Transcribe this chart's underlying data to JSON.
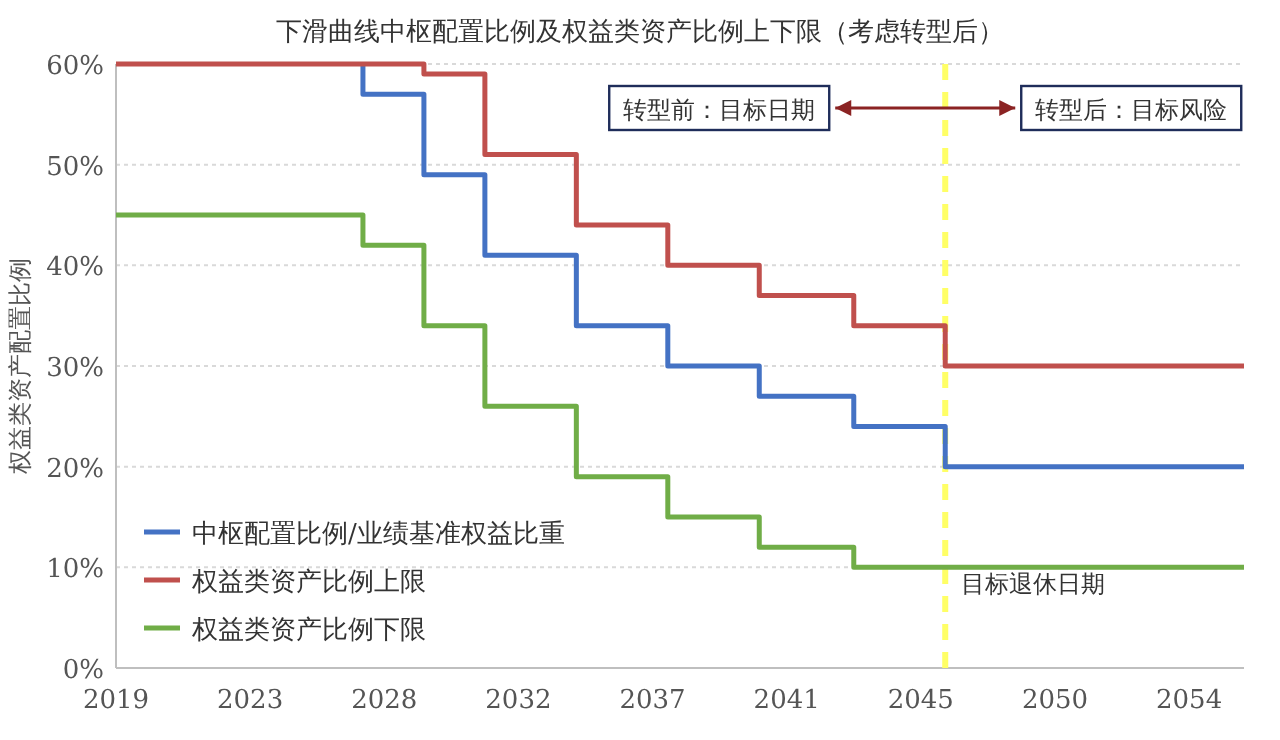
{
  "chart_data": {
    "type": "step",
    "title": "下滑曲线中枢配置比例及权益类资产比例上下限（考虑转型后）",
    "ylabel": "权益类资产配置比例",
    "xlim": [
      2019,
      2056
    ],
    "xticks": [
      {
        "value": 2019,
        "label": "2019"
      },
      {
        "value": 2023.4,
        "label": "2023"
      },
      {
        "value": 2027.8,
        "label": "2028"
      },
      {
        "value": 2032.2,
        "label": "2032"
      },
      {
        "value": 2036.6,
        "label": "2037"
      },
      {
        "value": 2041,
        "label": "2041"
      },
      {
        "value": 2045.4,
        "label": "2045"
      },
      {
        "value": 2049.8,
        "label": "2050"
      },
      {
        "value": 2054.2,
        "label": "2054"
      }
    ],
    "ylim": [
      0,
      60
    ],
    "yticks": [
      {
        "value": 0,
        "label": "0%"
      },
      {
        "value": 10,
        "label": "10%"
      },
      {
        "value": 20,
        "label": "20%"
      },
      {
        "value": 30,
        "label": "30%"
      },
      {
        "value": 40,
        "label": "40%"
      },
      {
        "value": 50,
        "label": "50%"
      },
      {
        "value": 60,
        "label": "60%"
      }
    ],
    "grid": "y",
    "legend": "bottom left",
    "series": [
      {
        "name": "中枢配置比例/业绩基准权益比重",
        "color": "#4472c4",
        "x": [
          2027.1,
          2027.1,
          2029.1,
          2031.1,
          2034.1,
          2037.1,
          2040.1,
          2043.2,
          2046.2,
          2056
        ],
        "values": [
          60,
          57,
          49,
          41,
          34,
          30,
          27,
          24,
          20,
          20
        ]
      },
      {
        "name": "权益类资产比例上限",
        "color": "#c0504d",
        "x": [
          2019,
          2029.1,
          2031.1,
          2034.1,
          2037.1,
          2040.1,
          2043.2,
          2046.2,
          2056
        ],
        "values": [
          60,
          59,
          51,
          44,
          40,
          37,
          34,
          30,
          30
        ]
      },
      {
        "name": "权益类资产比例下限",
        "color": "#70ad47",
        "x": [
          2019,
          2027.1,
          2029.1,
          2031.1,
          2034.1,
          2037.1,
          2040.1,
          2043.2,
          2056
        ],
        "values": [
          45,
          42,
          34,
          26,
          19,
          15,
          12,
          10,
          10
        ]
      }
    ],
    "ref_lines": [
      {
        "axis": "x",
        "value": 2046.2,
        "label": "目标退休日期",
        "color": "#ffff66",
        "line_style": "dashed"
      }
    ],
    "annotations": [
      "转型前：目标日期",
      "转型后：目标风险"
    ]
  }
}
